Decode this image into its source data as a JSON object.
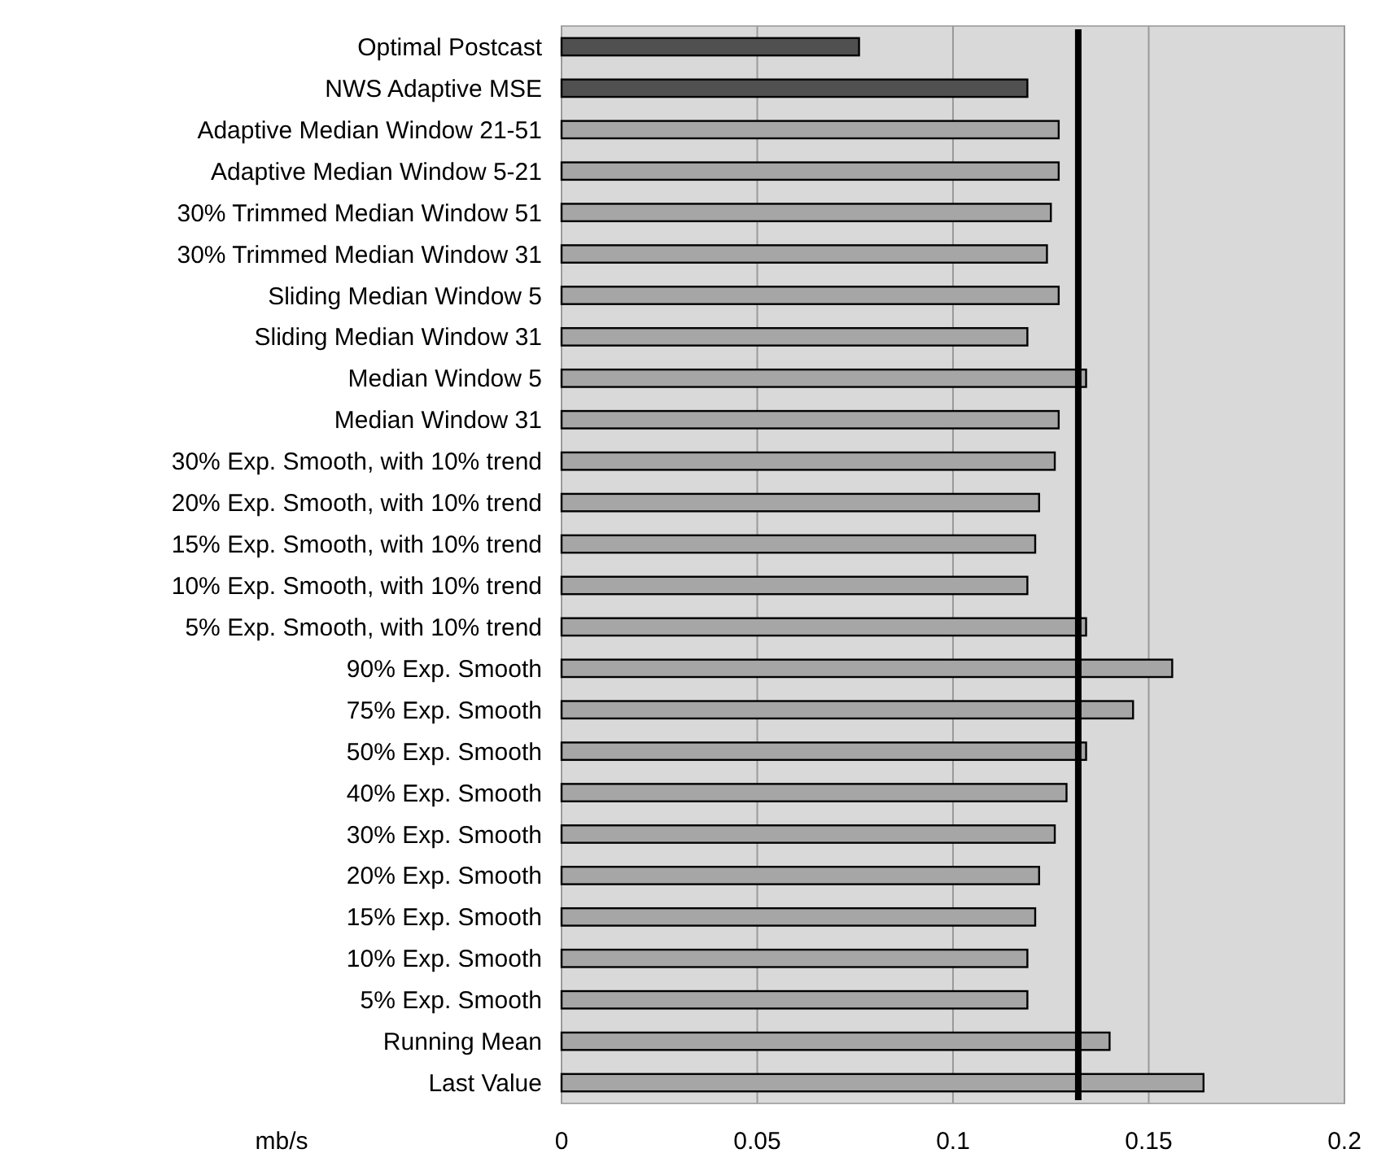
{
  "chart_data": {
    "type": "bar",
    "orientation": "horizontal",
    "xlabel": "mb/s",
    "categories": [
      "Optimal Postcast",
      "NWS Adaptive MSE",
      "Adaptive Median Window 21-51",
      "Adaptive Median Window 5-21",
      "30% Trimmed Median Window 51",
      "30% Trimmed Median Window 31",
      "Sliding Median Window 5",
      "Sliding Median Window 31",
      "Median Window 5",
      "Median Window 31",
      "30% Exp. Smooth, with 10% trend",
      "20% Exp. Smooth, with 10% trend",
      "15% Exp. Smooth, with 10% trend",
      "10% Exp. Smooth, with 10% trend",
      "5% Exp. Smooth, with 10% trend",
      "90% Exp. Smooth",
      "75% Exp. Smooth",
      "50% Exp. Smooth",
      "40% Exp. Smooth",
      "30% Exp. Smooth",
      "20% Exp. Smooth",
      "15% Exp. Smooth",
      "10% Exp. Smooth",
      "5% Exp. Smooth",
      "Running Mean",
      "Last Value"
    ],
    "values": [
      0.076,
      0.119,
      0.127,
      0.127,
      0.125,
      0.124,
      0.127,
      0.119,
      0.134,
      0.127,
      0.126,
      0.122,
      0.121,
      0.119,
      0.134,
      0.156,
      0.146,
      0.134,
      0.129,
      0.126,
      0.122,
      0.121,
      0.119,
      0.119,
      0.14,
      0.164
    ],
    "colors": [
      "#505050",
      "#505050",
      "#a6a6a6",
      "#a6a6a6",
      "#a6a6a6",
      "#a6a6a6",
      "#a6a6a6",
      "#a6a6a6",
      "#a6a6a6",
      "#a6a6a6",
      "#a6a6a6",
      "#a6a6a6",
      "#a6a6a6",
      "#a6a6a6",
      "#a6a6a6",
      "#a6a6a6",
      "#a6a6a6",
      "#a6a6a6",
      "#a6a6a6",
      "#a6a6a6",
      "#a6a6a6",
      "#a6a6a6",
      "#a6a6a6",
      "#a6a6a6",
      "#a6a6a6",
      "#a6a6a6"
    ],
    "xlim": [
      0,
      0.2
    ],
    "xticks": [
      0,
      0.05,
      0.1,
      0.15,
      0.2
    ],
    "grid": "x",
    "ref_lines": [
      {
        "axis": "x",
        "value": 0.132,
        "color": "#000000"
      }
    ]
  }
}
